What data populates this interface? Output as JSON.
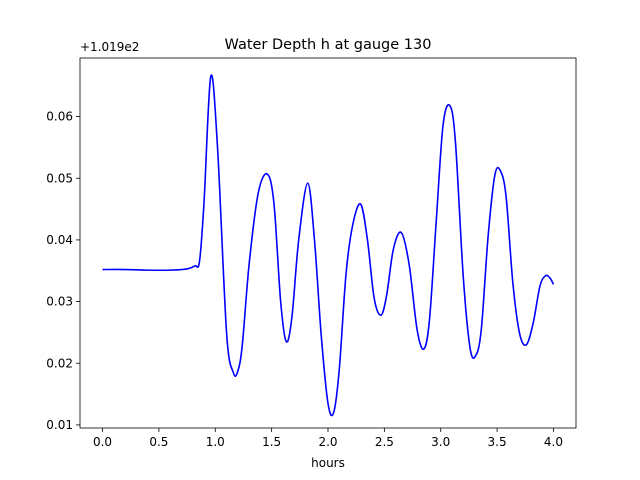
{
  "chart_data": {
    "type": "line",
    "title": "Water Depth h at gauge 130",
    "xlabel": "hours",
    "ylabel": "",
    "offset_label": "+1.019e2",
    "xlim": [
      -0.2,
      4.2
    ],
    "ylim": [
      0.0095,
      0.0695
    ],
    "x_ticks": [
      0.0,
      0.5,
      1.0,
      1.5,
      2.0,
      2.5,
      3.0,
      3.5,
      4.0
    ],
    "x_tick_labels": [
      "0.0",
      "0.5",
      "1.0",
      "1.5",
      "2.0",
      "2.5",
      "3.0",
      "3.5",
      "4.0"
    ],
    "y_ticks": [
      0.01,
      0.02,
      0.03,
      0.04,
      0.05,
      0.06
    ],
    "y_tick_labels": [
      "0.01",
      "0.02",
      "0.03",
      "0.04",
      "0.05",
      "0.06"
    ],
    "grid": false,
    "series": [
      {
        "name": "",
        "color": "#0000ff",
        "x": [
          0.0,
          0.2,
          0.4,
          0.6,
          0.75,
          0.82,
          0.86,
          0.9,
          0.96,
          1.02,
          1.1,
          1.16,
          1.2,
          1.24,
          1.3,
          1.38,
          1.46,
          1.52,
          1.58,
          1.63,
          1.68,
          1.74,
          1.82,
          1.88,
          1.94,
          2.0,
          2.05,
          2.1,
          2.16,
          2.22,
          2.29,
          2.35,
          2.41,
          2.47,
          2.52,
          2.58,
          2.65,
          2.72,
          2.79,
          2.85,
          2.9,
          2.96,
          3.02,
          3.08,
          3.13,
          3.2,
          3.26,
          3.31,
          3.36,
          3.42,
          3.48,
          3.53,
          3.58,
          3.64,
          3.7,
          3.76,
          3.82,
          3.88,
          3.93,
          3.97,
          4.0
        ],
        "values": [
          0.0352,
          0.0352,
          0.0351,
          0.0351,
          0.0353,
          0.0358,
          0.0365,
          0.046,
          0.0665,
          0.055,
          0.025,
          0.0185,
          0.0187,
          0.023,
          0.036,
          0.0475,
          0.0507,
          0.046,
          0.03,
          0.0235,
          0.0275,
          0.04,
          0.0492,
          0.04,
          0.0245,
          0.0135,
          0.012,
          0.019,
          0.0345,
          0.0425,
          0.0458,
          0.04,
          0.0305,
          0.0278,
          0.031,
          0.0385,
          0.0412,
          0.036,
          0.0255,
          0.0223,
          0.027,
          0.043,
          0.0585,
          0.0618,
          0.056,
          0.034,
          0.0225,
          0.0212,
          0.0255,
          0.0405,
          0.0505,
          0.0512,
          0.047,
          0.033,
          0.0248,
          0.023,
          0.0265,
          0.0325,
          0.0342,
          0.0338,
          0.0328
        ]
      }
    ]
  }
}
